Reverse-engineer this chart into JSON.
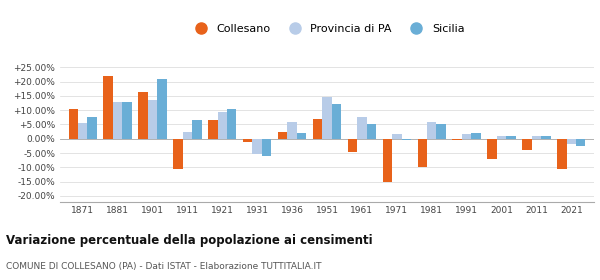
{
  "years": [
    1871,
    1881,
    1901,
    1911,
    1921,
    1931,
    1936,
    1951,
    1961,
    1971,
    1981,
    1991,
    2001,
    2011,
    2021
  ],
  "collesano": [
    10.5,
    22.0,
    16.5,
    -10.5,
    6.5,
    -1.0,
    2.5,
    7.0,
    -4.5,
    -15.0,
    -10.0,
    -0.5,
    -7.0,
    -4.0,
    -10.5
  ],
  "provincia_pa": [
    5.5,
    13.0,
    13.5,
    2.5,
    9.5,
    -5.5,
    6.0,
    14.5,
    7.5,
    1.5,
    6.0,
    1.5,
    1.0,
    1.0,
    -2.0
  ],
  "sicilia": [
    7.5,
    13.0,
    21.0,
    6.5,
    10.5,
    -6.0,
    2.0,
    12.0,
    5.0,
    -0.5,
    5.0,
    2.0,
    1.0,
    1.0,
    -2.5
  ],
  "color_collesano": "#e8621a",
  "color_provincia": "#b8cce8",
  "color_sicilia": "#6aaed6",
  "title_bold": "Variazione percentuale della popolazione ai censimenti",
  "subtitle": "COMUNE DI COLLESANO (PA) - Dati ISTAT - Elaborazione TUTTITALIA.IT",
  "yticks": [
    -20,
    -15,
    -10,
    -5,
    0,
    5,
    10,
    15,
    20,
    25
  ],
  "ylim": [
    -22,
    28
  ],
  "background_color": "#ffffff",
  "grid_color": "#d8d8d8"
}
